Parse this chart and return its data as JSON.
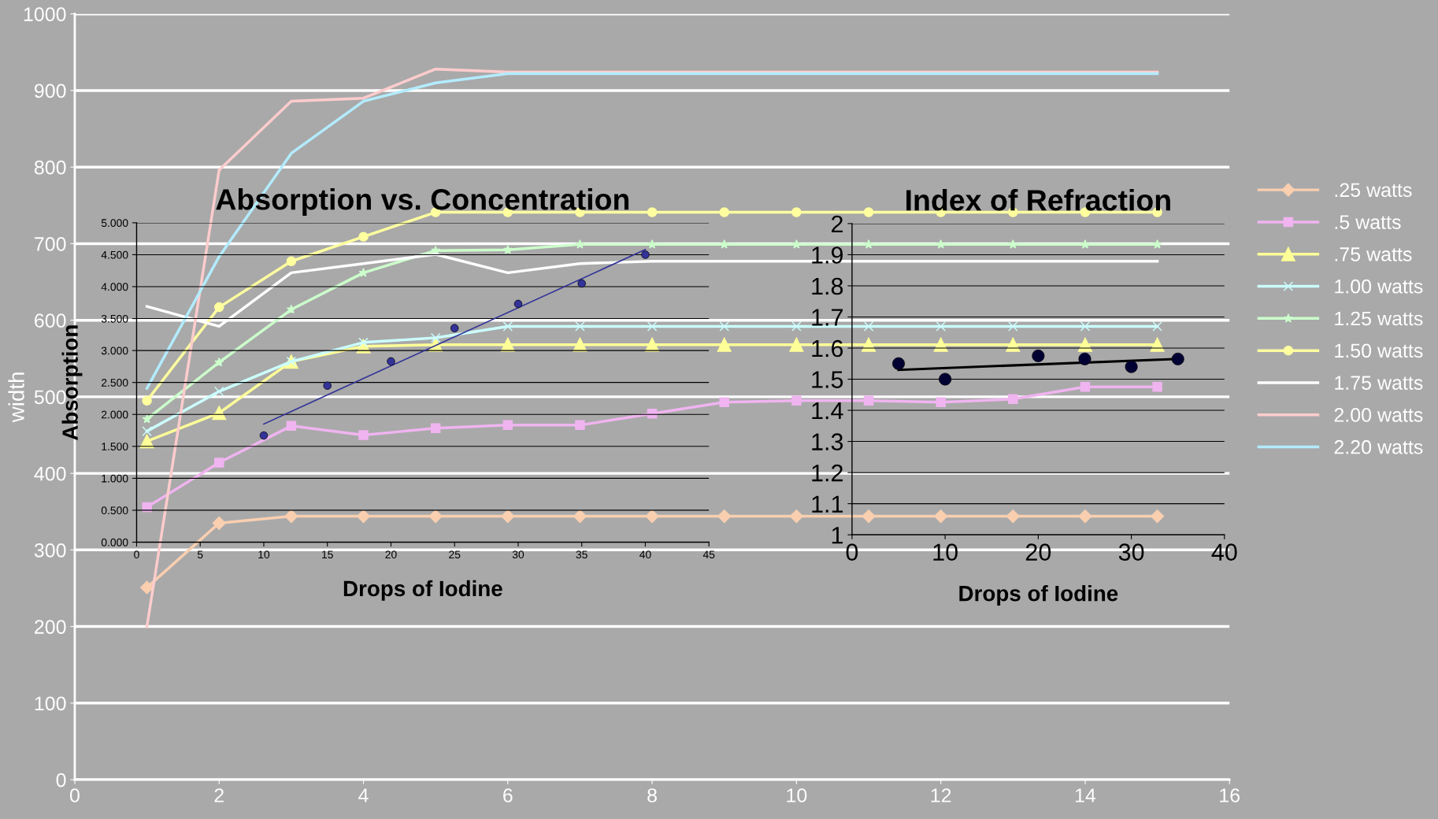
{
  "chart_data": [
    {
      "type": "line",
      "ylabel": "width",
      "xlim": [
        0,
        16
      ],
      "xticks": [
        0,
        2,
        4,
        6,
        8,
        10,
        12,
        14,
        16
      ],
      "ylim": [
        0,
        1000
      ],
      "yticks": [
        0,
        100,
        200,
        300,
        400,
        500,
        600,
        700,
        800,
        900,
        1000
      ],
      "grid": "y",
      "legend": "right",
      "x": [
        1,
        2,
        3,
        4,
        5,
        6,
        7,
        8,
        9,
        10,
        11,
        12,
        13,
        14,
        15
      ],
      "series": [
        {
          "name": ".25 watts",
          "color": "#f9cfb0",
          "marker": "diamond",
          "values": [
            251,
            335,
            344,
            344,
            344,
            344,
            344,
            344,
            344,
            344,
            344,
            344,
            344,
            344,
            344
          ]
        },
        {
          "name": ".5 watts",
          "color": "#f0b4f0",
          "marker": "square",
          "values": [
            356,
            414,
            462,
            450,
            459,
            463,
            463,
            478,
            493,
            495,
            495,
            493,
            497,
            513,
            513
          ]
        },
        {
          "name": ".75 watts",
          "color": "#ffff99",
          "marker": "triangle",
          "values": [
            442,
            479,
            546,
            566,
            568,
            568,
            568,
            568,
            568,
            568,
            568,
            568,
            568,
            568,
            568
          ]
        },
        {
          "name": "1.00 watts",
          "color": "#ccffff",
          "marker": "cross",
          "values": [
            455,
            507,
            546,
            571,
            577,
            592,
            592,
            592,
            592,
            592,
            592,
            592,
            592,
            592,
            592
          ]
        },
        {
          "name": "1.25 watts",
          "color": "#ccffcc",
          "marker": "star",
          "values": [
            471,
            545,
            614,
            662,
            691,
            692,
            699,
            699,
            699,
            699,
            699,
            699,
            699,
            699,
            699
          ]
        },
        {
          "name": "1.50 watts",
          "color": "#ffffa0",
          "marker": "circle",
          "values": [
            495,
            617,
            677,
            709,
            741,
            741,
            741,
            741,
            741,
            741,
            741,
            741,
            741,
            741,
            741
          ]
        },
        {
          "name": "1.75 watts",
          "color": "#ffffff",
          "marker": "none",
          "values": [
            618,
            592,
            662,
            674,
            686,
            662,
            674,
            677,
            677,
            677,
            677,
            677,
            677,
            677,
            677
          ]
        },
        {
          "name": "2.00 watts",
          "color": "#ffcccc",
          "marker": "none",
          "values": [
            200,
            796,
            886,
            890,
            928,
            924,
            924,
            924,
            924,
            924,
            924,
            924,
            924,
            924,
            924
          ]
        },
        {
          "name": "2.20 watts",
          "color": "#b3ecff",
          "marker": "none",
          "values": [
            511,
            683,
            818,
            886,
            910,
            922,
            922,
            922,
            922,
            922,
            922,
            922,
            922,
            922,
            922
          ]
        }
      ]
    },
    {
      "type": "scatter",
      "title": "Absorption vs. Concentration",
      "xlabel": "Drops of Iodine",
      "ylabel": "Absorption",
      "xlim": [
        0,
        45
      ],
      "xticks": [
        0,
        5,
        10,
        15,
        20,
        25,
        30,
        35,
        40,
        45
      ],
      "ylim": [
        0,
        5
      ],
      "yticks": [
        {
          "value": 0,
          "label": "0.000"
        },
        {
          "value": 0.5,
          "label": "0.500"
        },
        {
          "value": 1,
          "label": "1.000"
        },
        {
          "value": 1.5,
          "label": "1.500"
        },
        {
          "value": 2,
          "label": "2.000"
        },
        {
          "value": 2.5,
          "label": "2.500"
        },
        {
          "value": 3,
          "label": "3.000"
        },
        {
          "value": 3.5,
          "label": "3.500"
        },
        {
          "value": 4,
          "label": "4.000"
        },
        {
          "value": 4.5,
          "label": "4.500"
        },
        {
          "value": 5,
          "label": "5.000"
        }
      ],
      "grid": "y",
      "series": [
        {
          "type": "scatter",
          "color": "#333399",
          "x": [
            10,
            15,
            20,
            25,
            30,
            35,
            40
          ],
          "values": [
            1.67,
            2.45,
            2.83,
            3.35,
            3.73,
            4.05,
            4.5
          ]
        },
        {
          "type": "line",
          "color": "#333399",
          "x": [
            10,
            40
          ],
          "values": [
            1.85,
            4.58
          ]
        }
      ]
    },
    {
      "type": "scatter",
      "title": "Index of Refraction",
      "xlabel": "Drops of Iodine",
      "xlim": [
        0,
        40
      ],
      "xticks": [
        0,
        10,
        20,
        30,
        40
      ],
      "ylim": [
        1,
        2
      ],
      "yticks": [
        1,
        1.1,
        1.2,
        1.3,
        1.4,
        1.5,
        1.6,
        1.7,
        1.8,
        1.9,
        2
      ],
      "grid": "y",
      "series": [
        {
          "type": "scatter",
          "color": "#000033",
          "x": [
            5,
            10,
            20,
            25,
            30,
            35
          ],
          "values": [
            1.55,
            1.5,
            1.575,
            1.565,
            1.54,
            1.565
          ]
        },
        {
          "type": "line",
          "color": "#000000",
          "x": [
            5,
            35
          ],
          "values": [
            1.53,
            1.565
          ]
        }
      ]
    }
  ]
}
